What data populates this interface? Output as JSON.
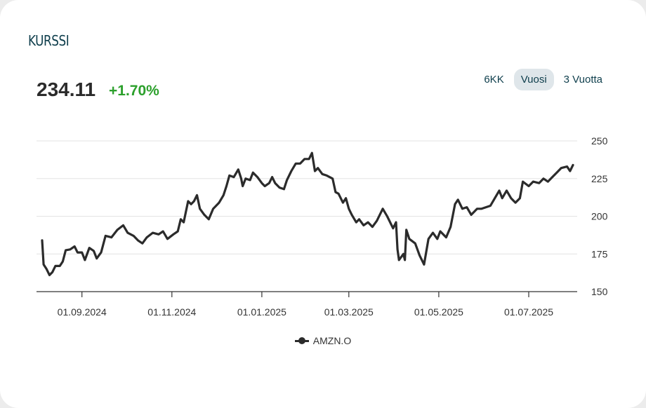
{
  "header": {
    "title": "KURSSI",
    "price": "234.11",
    "change": "+1.70%"
  },
  "tabs": [
    {
      "label": "6KK",
      "active": false
    },
    {
      "label": "Vuosi",
      "active": true
    },
    {
      "label": "3 Vuotta",
      "active": false
    }
  ],
  "colors": {
    "line": "#2b2b2b",
    "positive": "#2ca02c",
    "title": "#0e3e4c",
    "active_tab_bg": "#dfe6ea"
  },
  "chart_data": {
    "type": "line",
    "xlabel": "",
    "ylabel": "",
    "ylim": [
      150,
      250
    ],
    "yticks": [
      150,
      175,
      200,
      225,
      250
    ],
    "xticks": [
      "01.09.2024",
      "01.11.2024",
      "01.01.2025",
      "01.03.2025",
      "01.05.2025",
      "01.07.2025"
    ],
    "xrange": [
      "2024-08-05",
      "2025-07-31"
    ],
    "grid": true,
    "legend": "bottom-center",
    "series": [
      {
        "name": "AMZN.O",
        "points": [
          [
            "2024-08-05",
            184.0
          ],
          [
            "2024-08-06",
            168.0
          ],
          [
            "2024-08-08",
            165.0
          ],
          [
            "2024-08-10",
            161.0
          ],
          [
            "2024-08-12",
            163.0
          ],
          [
            "2024-08-14",
            167.0
          ],
          [
            "2024-08-17",
            167.0
          ],
          [
            "2024-08-19",
            170.0
          ],
          [
            "2024-08-21",
            177.5
          ],
          [
            "2024-08-24",
            178.0
          ],
          [
            "2024-08-27",
            180.0
          ],
          [
            "2024-08-29",
            176.0
          ],
          [
            "2024-09-01",
            176.0
          ],
          [
            "2024-09-03",
            171.0
          ],
          [
            "2024-09-06",
            179.0
          ],
          [
            "2024-09-09",
            177.0
          ],
          [
            "2024-09-11",
            172.0
          ],
          [
            "2024-09-14",
            176.0
          ],
          [
            "2024-09-17",
            187.0
          ],
          [
            "2024-09-21",
            186.0
          ],
          [
            "2024-09-25",
            191.0
          ],
          [
            "2024-09-29",
            194.0
          ],
          [
            "2024-10-02",
            189.0
          ],
          [
            "2024-10-06",
            187.0
          ],
          [
            "2024-10-09",
            184.0
          ],
          [
            "2024-10-12",
            182.0
          ],
          [
            "2024-10-15",
            186.0
          ],
          [
            "2024-10-19",
            189.0
          ],
          [
            "2024-10-23",
            188.0
          ],
          [
            "2024-10-26",
            190.0
          ],
          [
            "2024-10-29",
            185.0
          ],
          [
            "2024-11-02",
            188.0
          ],
          [
            "2024-11-05",
            190.0
          ],
          [
            "2024-11-07",
            198.0
          ],
          [
            "2024-11-09",
            196.0
          ],
          [
            "2024-11-12",
            210.0
          ],
          [
            "2024-11-14",
            208.0
          ],
          [
            "2024-11-16",
            210.0
          ],
          [
            "2024-11-18",
            214.0
          ],
          [
            "2024-11-20",
            205.0
          ],
          [
            "2024-11-23",
            201.0
          ],
          [
            "2024-11-26",
            198.0
          ],
          [
            "2024-11-29",
            205.0
          ],
          [
            "2024-12-03",
            209.0
          ],
          [
            "2024-12-06",
            214.0
          ],
          [
            "2024-12-08",
            220.0
          ],
          [
            "2024-12-10",
            227.0
          ],
          [
            "2024-12-13",
            226.0
          ],
          [
            "2024-12-16",
            231.0
          ],
          [
            "2024-12-18",
            225.0
          ],
          [
            "2024-12-19",
            220.0
          ],
          [
            "2024-12-21",
            225.0
          ],
          [
            "2024-12-24",
            224.0
          ],
          [
            "2024-12-26",
            229.0
          ],
          [
            "2024-12-29",
            226.0
          ],
          [
            "2025-01-01",
            222.0
          ],
          [
            "2025-01-03",
            220.0
          ],
          [
            "2025-01-06",
            222.0
          ],
          [
            "2025-01-08",
            226.0
          ],
          [
            "2025-01-10",
            222.0
          ],
          [
            "2025-01-13",
            219.0
          ],
          [
            "2025-01-16",
            218.0
          ],
          [
            "2025-01-18",
            224.0
          ],
          [
            "2025-01-21",
            230.0
          ],
          [
            "2025-01-24",
            235.0
          ],
          [
            "2025-01-27",
            235.0
          ],
          [
            "2025-01-30",
            238.0
          ],
          [
            "2025-02-02",
            238.0
          ],
          [
            "2025-02-04",
            242.0
          ],
          [
            "2025-02-05",
            236.0
          ],
          [
            "2025-02-06",
            230.0
          ],
          [
            "2025-02-08",
            232.0
          ],
          [
            "2025-02-11",
            228.0
          ],
          [
            "2025-02-14",
            227.0
          ],
          [
            "2025-02-18",
            225.0
          ],
          [
            "2025-02-20",
            216.0
          ],
          [
            "2025-02-22",
            215.0
          ],
          [
            "2025-02-25",
            209.0
          ],
          [
            "2025-02-27",
            212.0
          ],
          [
            "2025-03-01",
            205.0
          ],
          [
            "2025-03-03",
            201.0
          ],
          [
            "2025-03-06",
            196.0
          ],
          [
            "2025-03-08",
            198.0
          ],
          [
            "2025-03-11",
            194.0
          ],
          [
            "2025-03-14",
            196.0
          ],
          [
            "2025-03-17",
            193.0
          ],
          [
            "2025-03-20",
            197.0
          ],
          [
            "2025-03-24",
            205.0
          ],
          [
            "2025-03-27",
            200.0
          ],
          [
            "2025-03-31",
            192.0
          ],
          [
            "2025-04-02",
            196.0
          ],
          [
            "2025-04-03",
            178.0
          ],
          [
            "2025-04-04",
            171.0
          ],
          [
            "2025-04-07",
            175.0
          ],
          [
            "2025-04-08",
            171.0
          ],
          [
            "2025-04-09",
            191.0
          ],
          [
            "2025-04-11",
            185.0
          ],
          [
            "2025-04-15",
            182.0
          ],
          [
            "2025-04-18",
            174.0
          ],
          [
            "2025-04-21",
            168.0
          ],
          [
            "2025-04-24",
            185.0
          ],
          [
            "2025-04-27",
            189.0
          ],
          [
            "2025-04-30",
            185.0
          ],
          [
            "2025-05-02",
            190.0
          ],
          [
            "2025-05-06",
            186.0
          ],
          [
            "2025-05-09",
            193.0
          ],
          [
            "2025-05-12",
            208.0
          ],
          [
            "2025-05-14",
            211.0
          ],
          [
            "2025-05-17",
            205.0
          ],
          [
            "2025-05-20",
            206.0
          ],
          [
            "2025-05-23",
            201.0
          ],
          [
            "2025-05-27",
            205.0
          ],
          [
            "2025-05-30",
            205.0
          ],
          [
            "2025-06-02",
            206.0
          ],
          [
            "2025-06-05",
            207.0
          ],
          [
            "2025-06-08",
            212.0
          ],
          [
            "2025-06-11",
            217.0
          ],
          [
            "2025-06-13",
            212.0
          ],
          [
            "2025-06-16",
            217.0
          ],
          [
            "2025-06-19",
            212.0
          ],
          [
            "2025-06-22",
            209.0
          ],
          [
            "2025-06-25",
            212.0
          ],
          [
            "2025-06-27",
            223.0
          ],
          [
            "2025-07-01",
            220.0
          ],
          [
            "2025-07-04",
            223.0
          ],
          [
            "2025-07-08",
            222.0
          ],
          [
            "2025-07-11",
            225.0
          ],
          [
            "2025-07-14",
            223.0
          ],
          [
            "2025-07-17",
            226.0
          ],
          [
            "2025-07-20",
            229.0
          ],
          [
            "2025-07-23",
            232.0
          ],
          [
            "2025-07-27",
            233.0
          ],
          [
            "2025-07-29",
            230.0
          ],
          [
            "2025-07-31",
            234.0
          ]
        ]
      }
    ]
  }
}
